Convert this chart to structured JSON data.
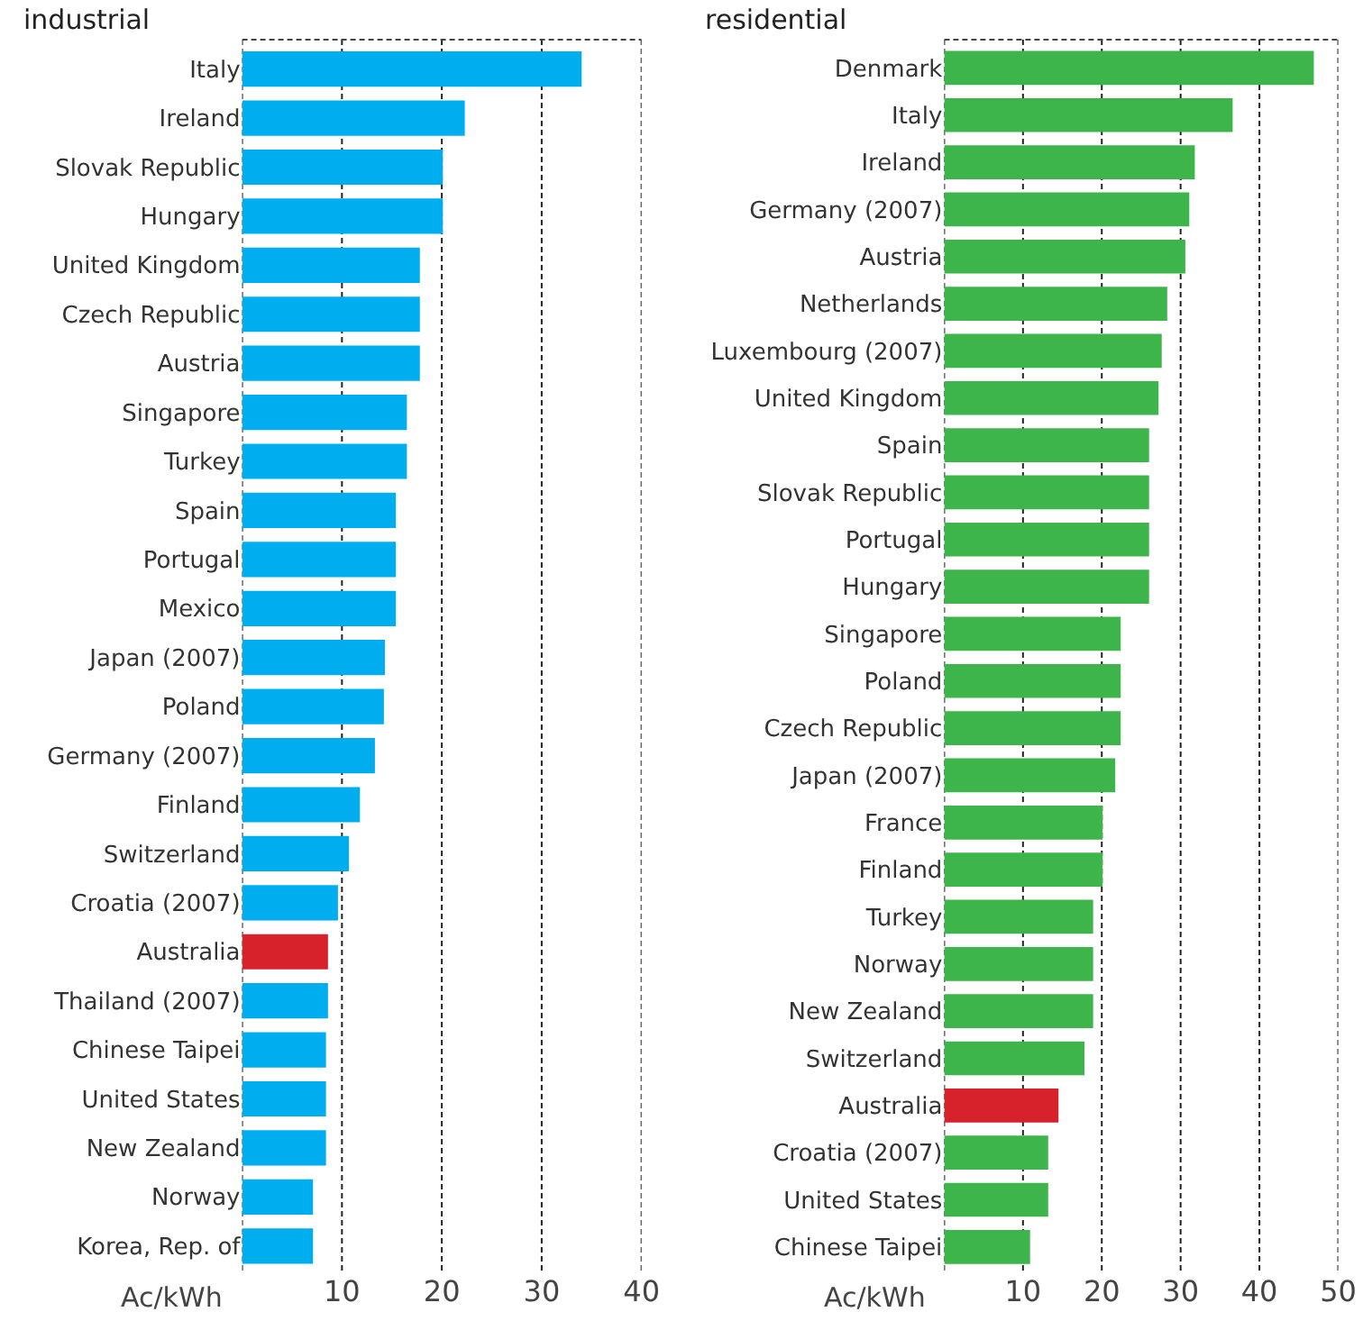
{
  "chart_data": [
    {
      "type": "bar",
      "orientation": "horizontal",
      "title": "industrial",
      "xlabel": "Ac/kWh",
      "grid": "x",
      "categories": [
        "Italy",
        "Ireland",
        "Slovak Republic",
        "Hungary",
        "United Kingdom",
        "Czech Republic",
        "Austria",
        "Singapore",
        "Turkey",
        "Spain",
        "Portugal",
        "Mexico",
        "Japan (2007)",
        "Poland",
        "Germany (2007)",
        "Finland",
        "Switzerland",
        "Croatia (2007)",
        "Australia",
        "Thailand (2007)",
        "Chinese Taipei",
        "United States",
        "New Zealand",
        "Norway",
        "Korea, Rep. of"
      ],
      "values": [
        34.0,
        22.3,
        20.1,
        20.1,
        17.8,
        17.8,
        17.8,
        16.5,
        16.5,
        15.4,
        15.4,
        15.4,
        14.3,
        14.2,
        13.3,
        11.8,
        10.7,
        9.6,
        8.6,
        8.6,
        8.4,
        8.4,
        8.4,
        7.1,
        7.1
      ],
      "colors": [
        "#00adef",
        "#00adef",
        "#00adef",
        "#00adef",
        "#00adef",
        "#00adef",
        "#00adef",
        "#00adef",
        "#00adef",
        "#00adef",
        "#00adef",
        "#00adef",
        "#00adef",
        "#00adef",
        "#00adef",
        "#00adef",
        "#00adef",
        "#00adef",
        "#d7212b",
        "#00adef",
        "#00adef",
        "#00adef",
        "#00adef",
        "#00adef",
        "#00adef"
      ],
      "xlim": [
        0,
        40
      ],
      "xticks": [
        {
          "value": 0,
          "label": null
        },
        10,
        20,
        30,
        40
      ]
    },
    {
      "type": "bar",
      "orientation": "horizontal",
      "title": "residential",
      "xlabel": "Ac/kWh",
      "grid": "x",
      "categories": [
        "Denmark",
        "Italy",
        "Ireland",
        "Germany (2007)",
        "Austria",
        "Netherlands",
        "Luxembourg (2007)",
        "United Kingdom",
        "Spain",
        "Slovak Republic",
        "Portugal",
        "Hungary",
        "Singapore",
        "Poland",
        "Czech Republic",
        "Japan (2007)",
        "France",
        "Finland",
        "Turkey",
        "Norway",
        "New Zealand",
        "Switzerland",
        "Australia",
        "Croatia (2007)",
        "United States",
        "Chinese Taipei"
      ],
      "values": [
        46.9,
        36.6,
        31.8,
        31.1,
        30.6,
        28.3,
        27.6,
        27.2,
        26.0,
        26.0,
        26.0,
        26.0,
        22.4,
        22.4,
        22.4,
        21.7,
        20.1,
        20.1,
        18.9,
        18.9,
        18.9,
        17.8,
        14.5,
        13.2,
        13.2,
        10.9
      ],
      "colors": [
        "#3db54a",
        "#3db54a",
        "#3db54a",
        "#3db54a",
        "#3db54a",
        "#3db54a",
        "#3db54a",
        "#3db54a",
        "#3db54a",
        "#3db54a",
        "#3db54a",
        "#3db54a",
        "#3db54a",
        "#3db54a",
        "#3db54a",
        "#3db54a",
        "#3db54a",
        "#3db54a",
        "#3db54a",
        "#3db54a",
        "#3db54a",
        "#3db54a",
        "#d7212b",
        "#3db54a",
        "#3db54a",
        "#3db54a"
      ],
      "xlim": [
        0,
        50
      ],
      "xticks": [
        {
          "value": 0,
          "label": null
        },
        10,
        20,
        30,
        40,
        50
      ]
    }
  ]
}
